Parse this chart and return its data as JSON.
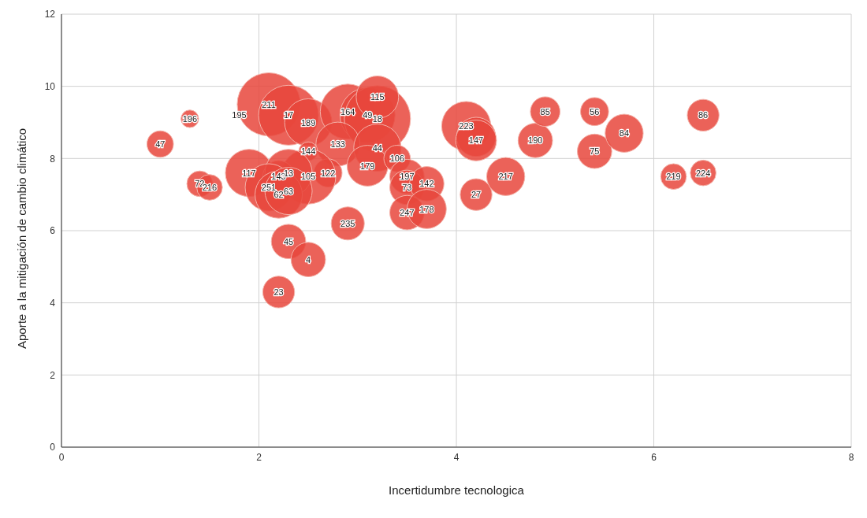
{
  "chart_data": {
    "type": "bubble",
    "xlabel": "Incertidumbre tecnologica",
    "ylabel": "Aporte a la mitigación de cambio climático",
    "xlim": [
      0,
      8
    ],
    "xticks": [
      0,
      2,
      4,
      6,
      8
    ],
    "ylim": [
      0,
      12
    ],
    "yticks": [
      0,
      2,
      4,
      6,
      8,
      10,
      12
    ],
    "grid": true,
    "legend": false,
    "series": [
      {
        "color": "#e8473c",
        "x": [
          1.0,
          1.3,
          1.8,
          2.1,
          2.3,
          2.5,
          2.9,
          3.1,
          3.2,
          3.2,
          2.8,
          2.5,
          3.2,
          3.1,
          3.4,
          2.7,
          2.5,
          1.9,
          2.2,
          2.3,
          2.1,
          2.2,
          2.3,
          1.4,
          1.5,
          2.9,
          2.3,
          2.5,
          2.2,
          3.5,
          3.5,
          3.7,
          3.5,
          3.7,
          4.1,
          4.2,
          4.2,
          4.2,
          4.5,
          4.8,
          4.9,
          5.4,
          5.4,
          5.7,
          6.5,
          6.2,
          6.5
        ],
        "values": [
          8.4,
          9.1,
          9.2,
          9.5,
          9.2,
          9.0,
          9.3,
          9.2,
          9.1,
          9.7,
          8.4,
          8.2,
          8.3,
          7.8,
          8.0,
          7.6,
          7.5,
          7.6,
          7.5,
          7.6,
          7.2,
          7.0,
          7.1,
          7.3,
          7.2,
          6.2,
          5.7,
          5.2,
          4.3,
          7.5,
          7.2,
          7.3,
          6.5,
          6.6,
          8.9,
          8.6,
          8.5,
          7.0,
          7.5,
          8.5,
          9.3,
          9.3,
          8.2,
          8.7,
          9.2,
          7.5,
          7.6
        ],
        "sizes": [
          0.16,
          0.07,
          0.01,
          0.91,
          0.82,
          0.51,
          0.69,
          0.69,
          1,
          0.41,
          0.44,
          0.08,
          0.51,
          0.38,
          0.16,
          0.18,
          0.69,
          0.51,
          0.23,
          0.51,
          0.51,
          0.51,
          0.51,
          0.15,
          0.15,
          0.25,
          0.27,
          0.27,
          0.23,
          0.27,
          0.27,
          0.27,
          0.27,
          0.35,
          0.55,
          0.35,
          0.38,
          0.23,
          0.33,
          0.27,
          0.2,
          0.18,
          0.27,
          0.33,
          0.23,
          0.15,
          0.15
        ]
      }
    ],
    "annotations": [
      {
        "text": "47",
        "x": 1.0,
        "y": 8.4
      },
      {
        "text": "196",
        "x": 1.3,
        "y": 9.1
      },
      {
        "text": "195",
        "x": 1.8,
        "y": 9.2
      },
      {
        "text": "211",
        "x": 2.1,
        "y": 9.5
      },
      {
        "text": "17",
        "x": 2.3,
        "y": 9.2
      },
      {
        "text": "189",
        "x": 2.5,
        "y": 9.0
      },
      {
        "text": "164",
        "x": 2.9,
        "y": 9.3
      },
      {
        "text": "49",
        "x": 3.1,
        "y": 9.2
      },
      {
        "text": "18",
        "x": 3.2,
        "y": 9.1
      },
      {
        "text": "115",
        "x": 3.2,
        "y": 9.7
      },
      {
        "text": "133",
        "x": 2.8,
        "y": 8.4
      },
      {
        "text": "144",
        "x": 2.5,
        "y": 8.2
      },
      {
        "text": "44",
        "x": 3.2,
        "y": 8.3
      },
      {
        "text": "179",
        "x": 3.1,
        "y": 7.8
      },
      {
        "text": "106",
        "x": 3.4,
        "y": 8.0
      },
      {
        "text": "122",
        "x": 2.7,
        "y": 7.6
      },
      {
        "text": "105",
        "x": 2.5,
        "y": 7.5
      },
      {
        "text": "117",
        "x": 1.9,
        "y": 7.6
      },
      {
        "text": "143",
        "x": 2.2,
        "y": 7.5
      },
      {
        "text": "13",
        "x": 2.3,
        "y": 7.6
      },
      {
        "text": "251",
        "x": 2.1,
        "y": 7.2
      },
      {
        "text": "62",
        "x": 2.2,
        "y": 7.0
      },
      {
        "text": "63",
        "x": 2.3,
        "y": 7.1
      },
      {
        "text": "72",
        "x": 1.4,
        "y": 7.3
      },
      {
        "text": "216",
        "x": 1.5,
        "y": 7.2
      },
      {
        "text": "235",
        "x": 2.9,
        "y": 6.2
      },
      {
        "text": "45",
        "x": 2.3,
        "y": 5.7
      },
      {
        "text": "4",
        "x": 2.5,
        "y": 5.2
      },
      {
        "text": "23",
        "x": 2.2,
        "y": 4.3
      },
      {
        "text": "197",
        "x": 3.5,
        "y": 7.5
      },
      {
        "text": "73",
        "x": 3.5,
        "y": 7.2
      },
      {
        "text": "142",
        "x": 3.7,
        "y": 7.3
      },
      {
        "text": "247",
        "x": 3.5,
        "y": 6.5
      },
      {
        "text": "178",
        "x": 3.7,
        "y": 6.6
      },
      {
        "text": "223",
        "x": 4.1,
        "y": 8.9
      },
      {
        "text": "147",
        "x": 4.2,
        "y": 8.5
      },
      {
        "text": "27",
        "x": 4.2,
        "y": 7.0
      },
      {
        "text": "217",
        "x": 4.5,
        "y": 7.5
      },
      {
        "text": "190",
        "x": 4.8,
        "y": 8.5
      },
      {
        "text": "85",
        "x": 4.9,
        "y": 9.3
      },
      {
        "text": "56",
        "x": 5.4,
        "y": 9.3
      },
      {
        "text": "75",
        "x": 5.4,
        "y": 8.2
      },
      {
        "text": "84",
        "x": 5.7,
        "y": 8.7
      },
      {
        "text": "86",
        "x": 6.5,
        "y": 9.2
      },
      {
        "text": "219",
        "x": 6.2,
        "y": 7.5
      },
      {
        "text": "224",
        "x": 6.5,
        "y": 7.6
      }
    ]
  }
}
